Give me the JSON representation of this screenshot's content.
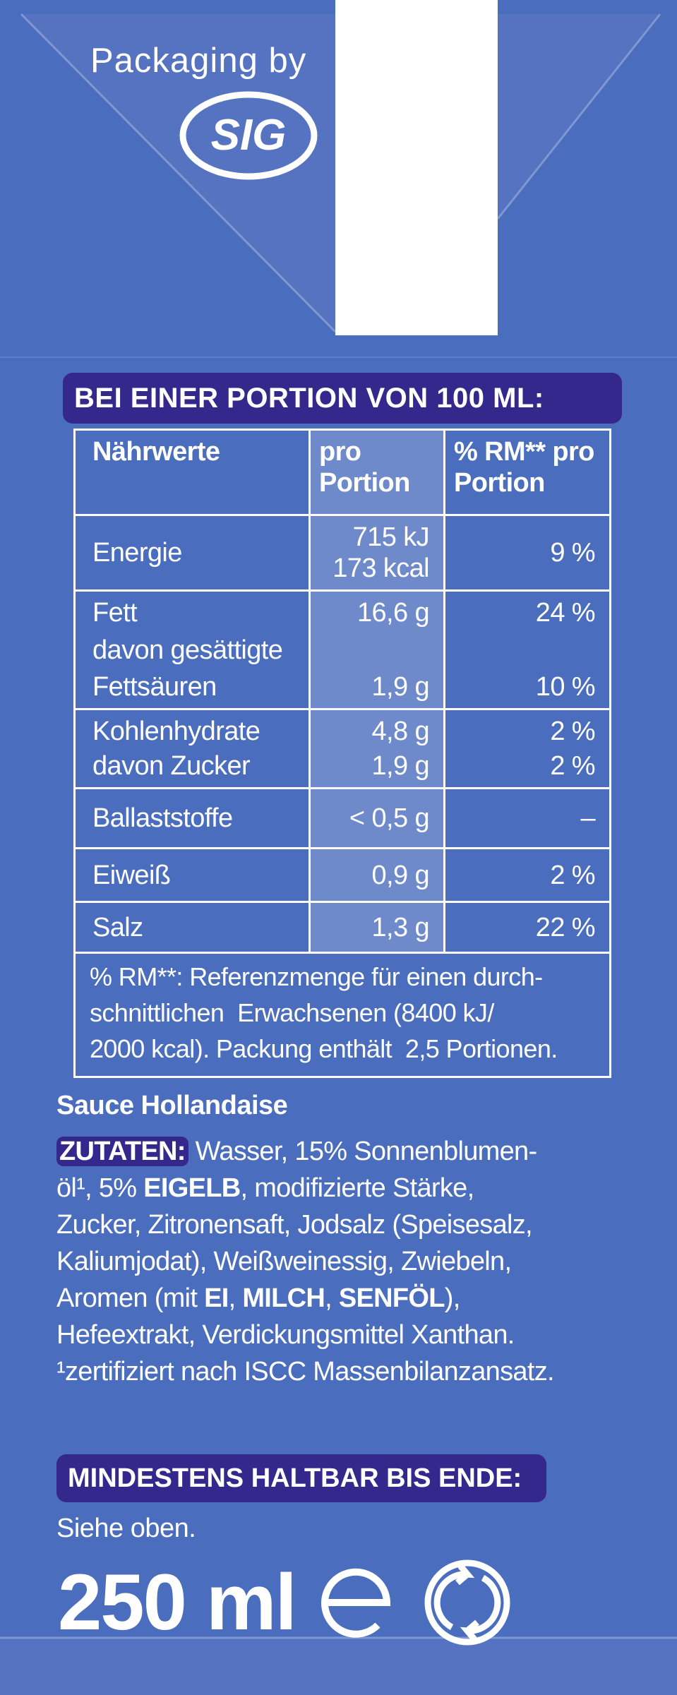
{
  "header": {
    "text": "Packaging by",
    "logo": "SIG"
  },
  "nutrition": {
    "heading": "BEI EINER PORTION VON 100 ML:",
    "columns": [
      [
        "Nährwerte"
      ],
      [
        "pro",
        "Portion"
      ],
      [
        "% RM** pro",
        "Portion"
      ]
    ],
    "rows": [
      {
        "label": [
          "Energie"
        ],
        "value": [
          "715 kJ",
          "173 kcal"
        ],
        "pct": [
          "9 %"
        ]
      },
      {
        "label": [
          "Fett",
          "davon gesättigte",
          "Fettsäuren"
        ],
        "value": [
          "16,6 g",
          "1,9 g"
        ],
        "pct": [
          "24 %",
          "10 %"
        ]
      },
      {
        "label": [
          "Kohlenhydrate",
          "davon Zucker"
        ],
        "value": [
          "4,8 g",
          "1,9 g"
        ],
        "pct": [
          "2 %",
          "2 %"
        ]
      },
      {
        "label": [
          "Ballaststoffe"
        ],
        "value": [
          "< 0,5 g"
        ],
        "pct": [
          "–"
        ]
      },
      {
        "label": [
          "Eiweiß"
        ],
        "value": [
          "0,9 g"
        ],
        "pct": [
          "2 %"
        ]
      },
      {
        "label": [
          "Salz"
        ],
        "value": [
          "1,3 g"
        ],
        "pct": [
          "22 %"
        ]
      }
    ],
    "footnote": [
      "% RM**: Referenzmenge für einen durch-",
      "schnittlichen  Erwachsenen (8400 kJ/",
      "2000 kcal). Packung enthält  2,5 Portionen."
    ]
  },
  "product": "Sauce Hollandaise",
  "ingredients": {
    "label": "ZUTATEN:",
    "lines": [
      [
        " Wasser, 15% Sonnenblumen-"
      ],
      [
        "öl¹, 5% ",
        {
          "text": "EIGELB",
          "bold": true
        },
        ", modifizierte Stärke,"
      ],
      [
        "Zucker, Zitronensaft, Jodsalz (Speisesalz,"
      ],
      [
        "Kaliumjodat), Weißweinessig, Zwiebeln,"
      ],
      [
        "Aromen (mit ",
        {
          "text": "EI",
          "bold": true
        },
        ", ",
        {
          "text": "MILCH",
          "bold": true
        },
        ", ",
        {
          "text": "SENFÖL",
          "bold": true
        },
        "),"
      ],
      [
        "Hefeextrakt, Verdickungsmittel Xanthan."
      ],
      [
        "¹zertifiziert nach ISCC Massenbilanzansatz."
      ]
    ]
  },
  "best_before": {
    "heading": "MINDESTENS HALTBAR BIS ENDE:",
    "text": "Siehe oben."
  },
  "volume": "250 ml"
}
